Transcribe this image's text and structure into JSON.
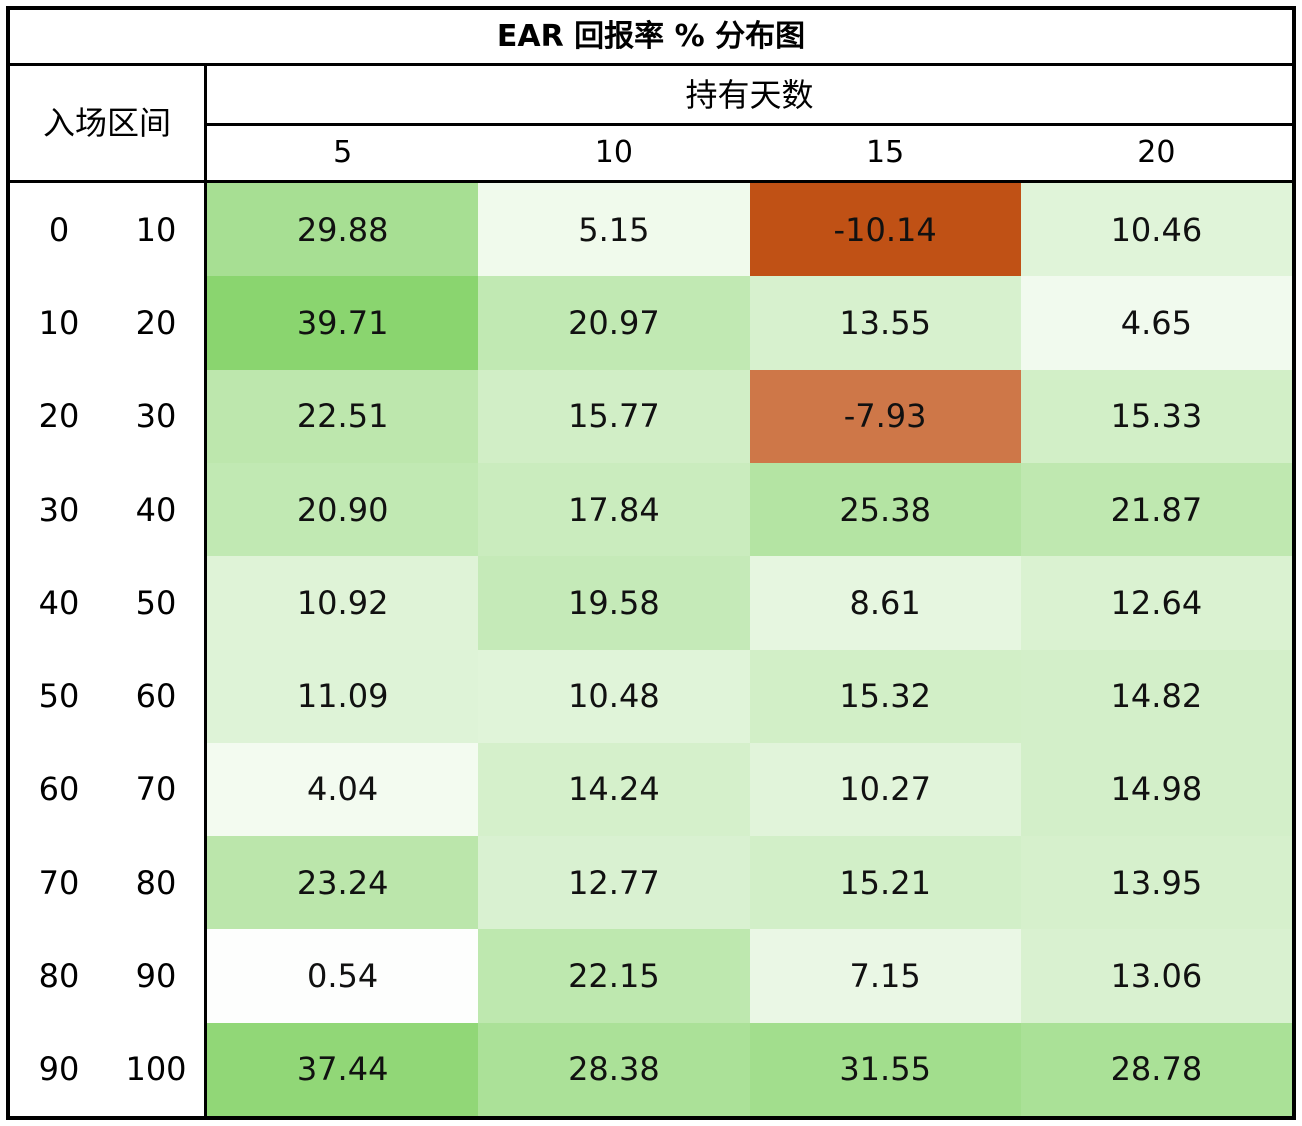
{
  "title": "EAR 回报率 % 分布图",
  "chart_data": {
    "type": "heatmap",
    "title": "EAR 回报率 % 分布图",
    "corner_label": "入场区间",
    "column_group_label": "持有天数",
    "columns": [
      "5",
      "10",
      "15",
      "20"
    ],
    "row_ranges": [
      [
        "0",
        "10"
      ],
      [
        "10",
        "20"
      ],
      [
        "20",
        "30"
      ],
      [
        "30",
        "40"
      ],
      [
        "40",
        "50"
      ],
      [
        "50",
        "60"
      ],
      [
        "60",
        "70"
      ],
      [
        "70",
        "80"
      ],
      [
        "80",
        "90"
      ],
      [
        "90",
        "100"
      ]
    ],
    "values": [
      [
        29.88,
        5.15,
        -10.14,
        10.46
      ],
      [
        39.71,
        20.97,
        13.55,
        4.65
      ],
      [
        22.51,
        15.77,
        -7.93,
        15.33
      ],
      [
        20.9,
        17.84,
        25.38,
        21.87
      ],
      [
        10.92,
        19.58,
        8.61,
        12.64
      ],
      [
        11.09,
        10.48,
        15.32,
        14.82
      ],
      [
        4.04,
        14.24,
        10.27,
        14.98
      ],
      [
        23.24,
        12.77,
        15.21,
        13.95
      ],
      [
        0.54,
        22.15,
        7.15,
        13.06
      ],
      [
        37.44,
        28.38,
        31.55,
        28.78
      ]
    ],
    "value_decimals": 2,
    "colormap": {
      "min_value": -10.14,
      "mid_value": 0,
      "max_value": 39.71,
      "min_color": "#C05115",
      "mid_color": "#FFFFFF",
      "max_color": "#8AD56F"
    },
    "layout": {
      "grid": "off",
      "border_color": "#000000",
      "text_color": "#000000"
    }
  }
}
